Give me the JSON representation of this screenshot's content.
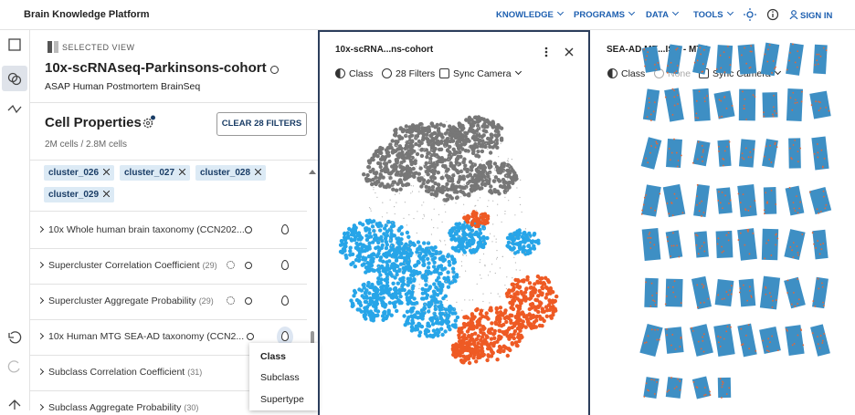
{
  "header": {
    "title": "Brain Knowledge Platform",
    "nav": [
      "KNOWLEDGE",
      "PROGRAMS",
      "DATA",
      "TOOLS"
    ],
    "sign_in": "SIGN IN"
  },
  "sidebar": {
    "section_label": "SELECTED VIEW",
    "view_title": "10x-scRNAseq-Parkinsons-cohort",
    "view_subtitle": "ASAP Human Postmortem BrainSeq",
    "heading": "Cell Properties",
    "clear_button": "CLEAR 28 FILTERS",
    "cell_count": "2M cells / 2.8M cells",
    "chips": [
      "cluster_026",
      "cluster_027",
      "cluster_028",
      "cluster_029"
    ],
    "rows": [
      {
        "label": "10x Whole human brain taxonomy (CCN202..."
      },
      {
        "label": "Supercluster Correlation Coefficient",
        "count": "(29)"
      },
      {
        "label": "Supercluster Aggregate Probability",
        "count": "(29)"
      },
      {
        "label": "10x Human MTG SEA-AD taxonomy (CCN2..."
      },
      {
        "label": "Subclass Correlation Coefficient",
        "count": "(31)"
      },
      {
        "label": "Subclass Aggregate Probability",
        "count": "(30)"
      }
    ],
    "dropdown": [
      "Class",
      "Subclass",
      "Supertype"
    ]
  },
  "panels": [
    {
      "title": "10x-scRNA...ns-cohort",
      "color_by": "Class",
      "filters": "28 Filters",
      "camera": "Sync Camera"
    },
    {
      "title": "SEA-AD ME...ISH - MTG",
      "color_by": "Class",
      "filters": "None",
      "camera": "Sync Camera"
    }
  ]
}
